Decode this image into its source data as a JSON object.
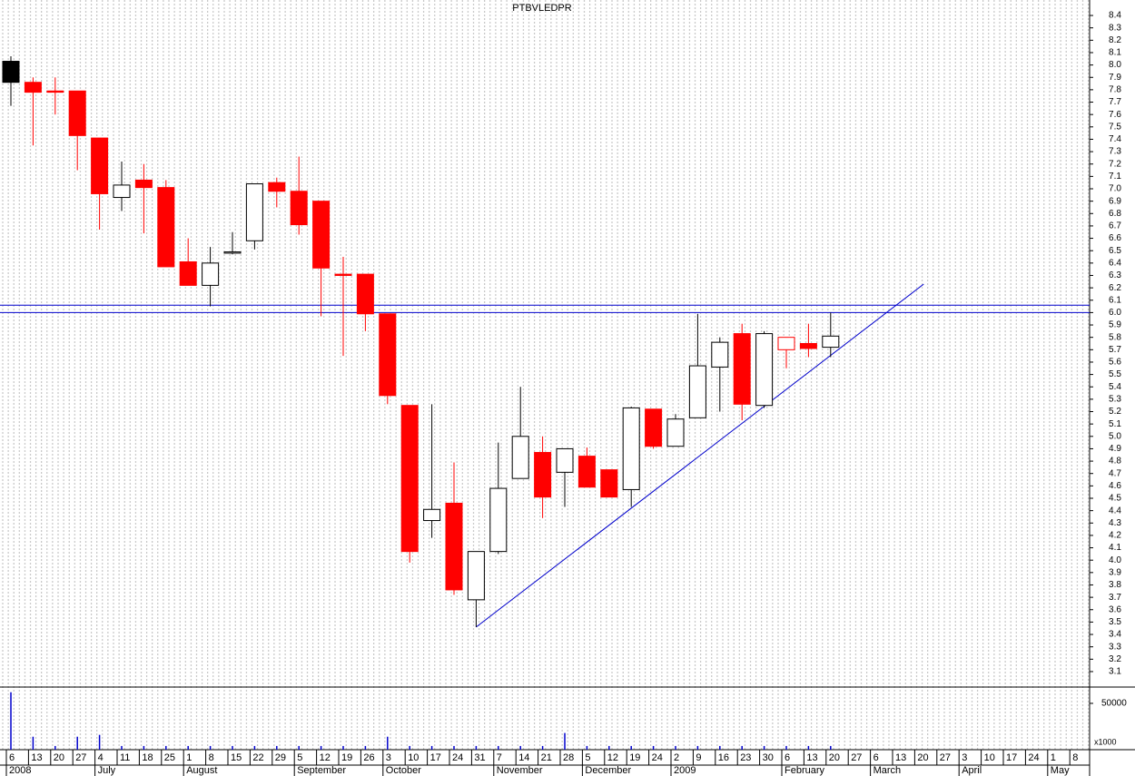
{
  "chart_data": {
    "type": "candlestick",
    "title": "PTBVLEDPR",
    "categories": [
      "6",
      "13",
      "20",
      "27",
      "4",
      "11",
      "18",
      "25",
      "1",
      "8",
      "15",
      "22",
      "29",
      "5",
      "12",
      "19",
      "26",
      "3",
      "10",
      "17",
      "24",
      "31",
      "7",
      "14",
      "21",
      "28",
      "5",
      "12",
      "19",
      "24",
      "2",
      "9",
      "16",
      "23",
      "30",
      "6",
      "13",
      "20",
      "27",
      "6",
      "13",
      "20",
      "27",
      "3",
      "10",
      "17",
      "24",
      "1",
      "8"
    ],
    "month_labels": [
      "2008",
      null,
      null,
      null,
      "July",
      null,
      null,
      null,
      "August",
      null,
      null,
      null,
      null,
      "September",
      null,
      null,
      null,
      "October",
      null,
      null,
      null,
      null,
      "November",
      null,
      null,
      null,
      "December",
      null,
      null,
      null,
      "2009",
      null,
      null,
      null,
      null,
      "February",
      null,
      null,
      null,
      "March",
      null,
      null,
      null,
      "April",
      null,
      null,
      null,
      "May",
      null
    ],
    "open": [
      7.86,
      7.86,
      7.79,
      7.79,
      7.41,
      6.93,
      7.07,
      7.01,
      6.41,
      6.22,
      6.48,
      6.58,
      7.05,
      6.98,
      6.9,
      6.31,
      6.31,
      5.99,
      5.25,
      4.32,
      4.46,
      3.68,
      4.07,
      4.66,
      4.87,
      4.71,
      4.84,
      4.73,
      4.57,
      5.22,
      4.92,
      5.15,
      5.56,
      5.83,
      5.25,
      5.8,
      5.75,
      5.72,
      null,
      null,
      null,
      null,
      null,
      null,
      null,
      null,
      null,
      null,
      null
    ],
    "high": [
      8.07,
      7.9,
      7.9,
      7.79,
      7.41,
      7.22,
      7.2,
      7.07,
      6.6,
      6.53,
      6.65,
      7.04,
      7.09,
      7.26,
      6.9,
      6.45,
      6.31,
      5.99,
      5.25,
      5.26,
      4.79,
      4.07,
      4.95,
      5.4,
      5.0,
      4.9,
      4.91,
      4.73,
      5.24,
      5.22,
      5.18,
      5.99,
      5.8,
      5.91,
      5.85,
      5.8,
      5.91,
      6.0,
      null,
      null,
      null,
      null,
      null,
      null,
      null,
      null,
      null,
      null,
      null
    ],
    "low": [
      7.67,
      7.35,
      7.6,
      7.15,
      6.67,
      6.82,
      6.64,
      6.37,
      6.22,
      6.05,
      6.47,
      6.51,
      6.85,
      6.63,
      5.97,
      5.65,
      5.85,
      5.26,
      3.98,
      4.18,
      3.72,
      3.46,
      4.05,
      4.66,
      4.34,
      4.43,
      4.59,
      4.51,
      4.43,
      4.9,
      4.92,
      5.15,
      5.2,
      5.13,
      5.23,
      5.55,
      5.64,
      5.64,
      null,
      null,
      null,
      null,
      null,
      null,
      null,
      null,
      null,
      null,
      null
    ],
    "close": [
      8.03,
      7.78,
      7.78,
      7.43,
      6.96,
      7.03,
      7.01,
      6.37,
      6.22,
      6.4,
      6.49,
      7.04,
      6.98,
      6.71,
      6.36,
      6.3,
      5.99,
      5.33,
      4.07,
      4.41,
      3.76,
      4.07,
      4.58,
      5.0,
      4.51,
      4.9,
      4.59,
      4.51,
      5.23,
      4.92,
      5.14,
      5.57,
      5.76,
      5.26,
      5.83,
      5.7,
      5.71,
      5.81,
      null,
      null,
      null,
      null,
      null,
      null,
      null,
      null,
      null,
      null,
      null
    ],
    "body_colors": [
      "#000000",
      "#ff0000",
      "#ff0000",
      "#ff0000",
      "#ff0000",
      "#ffffff",
      "#ff0000",
      "#ff0000",
      "#ff0000",
      "#ffffff",
      "#ffffff",
      "#ffffff",
      "#ff0000",
      "#ff0000",
      "#ff0000",
      "#ff0000",
      "#ff0000",
      "#ff0000",
      "#ff0000",
      "#ffffff",
      "#ff0000",
      "#ffffff",
      "#ffffff",
      "#ffffff",
      "#ff0000",
      "#ffffff",
      "#ff0000",
      "#ff0000",
      "#ffffff",
      "#ff0000",
      "#ffffff",
      "#ffffff",
      "#ffffff",
      "#ff0000",
      "#ffffff",
      "#ffffff",
      "#ff0000",
      "#ffffff",
      null,
      null,
      null,
      null,
      null,
      null,
      null,
      null,
      null,
      null,
      null
    ],
    "outline_colors": [
      "#000000",
      "#ff0000",
      "#ff0000",
      "#ff0000",
      "#ff0000",
      "#000000",
      "#ff0000",
      "#ff0000",
      "#ff0000",
      "#000000",
      "#000000",
      "#000000",
      "#ff0000",
      "#ff0000",
      "#ff0000",
      "#ff0000",
      "#ff0000",
      "#ff0000",
      "#ff0000",
      "#000000",
      "#ff0000",
      "#000000",
      "#000000",
      "#000000",
      "#ff0000",
      "#000000",
      "#ff0000",
      "#ff0000",
      "#000000",
      "#ff0000",
      "#000000",
      "#000000",
      "#000000",
      "#ff0000",
      "#000000",
      "#ff0000",
      "#ff0000",
      "#000000",
      null,
      null,
      null,
      null,
      null,
      null,
      null,
      null,
      null,
      null,
      null
    ],
    "ylim": [
      2.975,
      8.525
    ],
    "yticks": [
      3.1,
      3.2,
      3.3,
      3.4,
      3.5,
      3.6,
      3.7,
      3.8,
      3.9,
      {
        "value": 4,
        "label": "4.0"
      },
      4.1,
      4.2,
      4.3,
      4.4,
      4.5,
      4.6,
      4.7,
      4.8,
      4.9,
      {
        "value": 5,
        "label": "5.0"
      },
      5.1,
      5.2,
      5.3,
      5.4,
      5.5,
      5.6,
      5.7,
      5.8,
      5.9,
      {
        "value": 6,
        "label": "6.0"
      },
      6.1,
      6.2,
      6.3,
      6.4,
      6.5,
      6.6,
      6.7,
      6.8,
      6.9,
      {
        "value": 7,
        "label": "7.0"
      },
      7.1,
      7.2,
      7.3,
      7.4,
      7.5,
      7.6,
      7.7,
      7.8,
      7.9,
      {
        "value": 8,
        "label": "8.0"
      },
      8.1,
      8.2,
      8.3,
      8.4
    ],
    "horizontal_lines": [
      6.06,
      6.0
    ],
    "line_color": "#0000cc",
    "trendline": {
      "x0": 21,
      "y0": 3.46,
      "x1": 41.2,
      "y1": 6.23
    },
    "volume": {
      "label": "x1000",
      "color": "#0000cc",
      "values": [
        62000,
        14000,
        4000,
        14000,
        16000,
        4000,
        4000,
        4000,
        4000,
        4000,
        4000,
        4000,
        4000,
        4000,
        4000,
        4000,
        4000,
        14000,
        4000,
        4000,
        4000,
        4000,
        4000,
        4000,
        4000,
        18000,
        4000,
        4000,
        4000,
        4000,
        4000,
        4000,
        4000,
        4000,
        4000,
        4000,
        4000,
        4000,
        null,
        null,
        null,
        null,
        null,
        null,
        null,
        null,
        null,
        null,
        null
      ],
      "ylim": [
        0,
        67600
      ],
      "yticks": [
        50000
      ]
    }
  }
}
